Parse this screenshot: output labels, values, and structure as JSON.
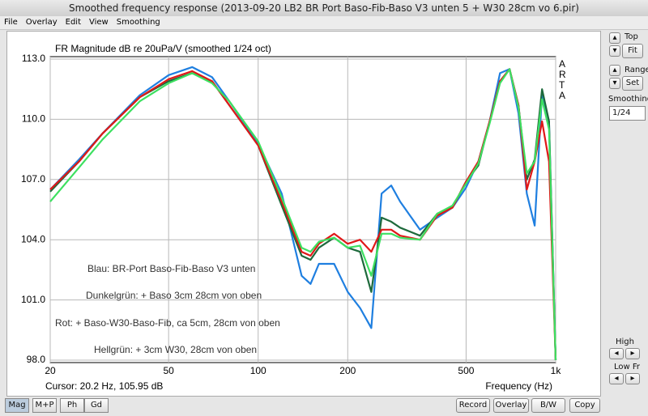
{
  "window": {
    "title": "Smoothed frequency response (2013-09-20 LB2 BR Port Baso-Fib-Baso V3 unten 5 + W30 28cm vo 6.pir)"
  },
  "menu": [
    "File",
    "Overlay",
    "Edit",
    "View",
    "Smoothing"
  ],
  "side_panel": {
    "top_label": "Top",
    "fit": "Fit",
    "range_label": "Range",
    "set": "Set",
    "smoothing_label": "Smoothing",
    "smoothing_value": "1/24",
    "high_label": "High",
    "lowfr_label": "Low Fr"
  },
  "tabs": [
    "Mag",
    "M+P",
    "Ph",
    "Gd"
  ],
  "buttons": [
    "Record",
    "Overlay",
    "B/W",
    "Copy"
  ],
  "cursor": "Cursor: 20.2 Hz, 105.95 dB",
  "chart_data": {
    "type": "line",
    "title": "FR Magnitude dB re 20uPa/V (smoothed 1/24 oct)",
    "brand": "ARTA",
    "x_label": "Frequency (Hz)",
    "log_x": true,
    "grid": true,
    "xlim": [
      20,
      1000
    ],
    "xticks": [
      20,
      50,
      100,
      200,
      500,
      {
        "value": 1000,
        "label": "1k"
      }
    ],
    "ylim": [
      98,
      113
    ],
    "yticks": [
      {
        "value": 113,
        "label": "113.0"
      },
      {
        "value": 110,
        "label": "110.0"
      },
      {
        "value": 107,
        "label": "107.0"
      },
      {
        "value": 104,
        "label": "104.0"
      },
      {
        "value": 101,
        "label": "101.0"
      },
      {
        "value": 98,
        "label": "98.0"
      }
    ],
    "x": [
      20,
      25,
      30,
      40,
      50,
      60,
      70,
      80,
      100,
      120,
      140,
      150,
      160,
      180,
      200,
      220,
      240,
      260,
      280,
      300,
      350,
      400,
      450,
      500,
      550,
      600,
      650,
      700,
      750,
      800,
      850,
      900,
      950,
      1000
    ],
    "series": [
      {
        "name": "Blau: BR-Port Baso-Fib-Baso V3 unten",
        "color": "#1f7fe0",
        "values": [
          106.5,
          108.0,
          109.3,
          111.2,
          112.2,
          112.6,
          112.1,
          110.9,
          108.8,
          106.3,
          102.2,
          101.8,
          102.8,
          102.8,
          101.4,
          100.6,
          99.6,
          106.3,
          106.7,
          105.9,
          104.5,
          105.1,
          105.6,
          106.6,
          107.9,
          109.9,
          112.3,
          112.5,
          110.3,
          106.3,
          104.7,
          111.3,
          109.9,
          98.0
        ]
      },
      {
        "name": "Dunkelgrün: + Baso 3cm 28cm von oben",
        "color": "#1e6a3c",
        "values": [
          106.4,
          107.9,
          109.3,
          111.1,
          111.9,
          112.3,
          111.9,
          110.7,
          108.7,
          105.7,
          103.2,
          103.0,
          103.6,
          104.1,
          103.6,
          103.4,
          101.4,
          105.1,
          104.9,
          104.6,
          104.2,
          105.3,
          105.6,
          106.9,
          107.7,
          109.9,
          111.9,
          112.5,
          110.7,
          107.0,
          108.0,
          111.5,
          109.9,
          98.0
        ]
      },
      {
        "name": "Rot: + Baso-W30-Baso-Fib, ca 5cm, 28cm von oben",
        "color": "#e01818",
        "values": [
          106.5,
          107.9,
          109.3,
          111.1,
          112.0,
          112.4,
          111.9,
          110.7,
          108.7,
          105.9,
          103.4,
          103.2,
          103.8,
          104.3,
          103.8,
          104.0,
          103.4,
          104.5,
          104.5,
          104.2,
          104.0,
          105.2,
          105.6,
          106.9,
          107.9,
          109.9,
          111.9,
          112.5,
          110.7,
          106.5,
          107.9,
          109.9,
          107.9,
          98.0
        ]
      },
      {
        "name": "Hellgrün: + 3cm W30, 28cm von oben",
        "color": "#3de060",
        "values": [
          105.9,
          107.6,
          109.0,
          110.9,
          111.8,
          112.3,
          111.8,
          110.9,
          108.9,
          106.1,
          103.6,
          103.4,
          103.9,
          104.1,
          103.6,
          103.7,
          102.2,
          104.3,
          104.3,
          104.1,
          104.0,
          105.3,
          105.7,
          106.8,
          107.8,
          109.8,
          111.8,
          112.5,
          110.6,
          107.3,
          107.9,
          111.0,
          109.5,
          98.0
        ]
      }
    ]
  }
}
